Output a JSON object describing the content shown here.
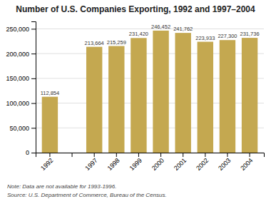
{
  "chart_data": {
    "type": "bar",
    "title": "Number of U.S. Companies Exporting, 1992 and 1997–2004",
    "categories": [
      "1992",
      null,
      "1997",
      "1998",
      "1999",
      "2000",
      "2001",
      "2002",
      "2003",
      "2004"
    ],
    "values": [
      112854,
      null,
      213664,
      215259,
      231420,
      246452,
      241762,
      223933,
      227300,
      231736
    ],
    "value_labels": [
      "112,854",
      null,
      "213,664",
      "215,259",
      "231,420",
      "246,452",
      "241,762",
      "223,933",
      "227,300",
      "231,736"
    ],
    "color": "#C4A850",
    "ylim": [
      0,
      265000
    ],
    "yticks": [
      0,
      {
        "value": 50000,
        "label": "50,000"
      },
      {
        "value": 100000,
        "label": "100,000"
      },
      {
        "value": 150000,
        "label": "150,000"
      },
      {
        "value": 200000,
        "label": "200,000"
      },
      {
        "value": 250000,
        "label": "250,000"
      }
    ],
    "grid": true,
    "annotations": [
      "Note: Data are not available for 1993-1996.",
      "Source: U.S. Department of Commerce, Bureau of the Census."
    ]
  }
}
